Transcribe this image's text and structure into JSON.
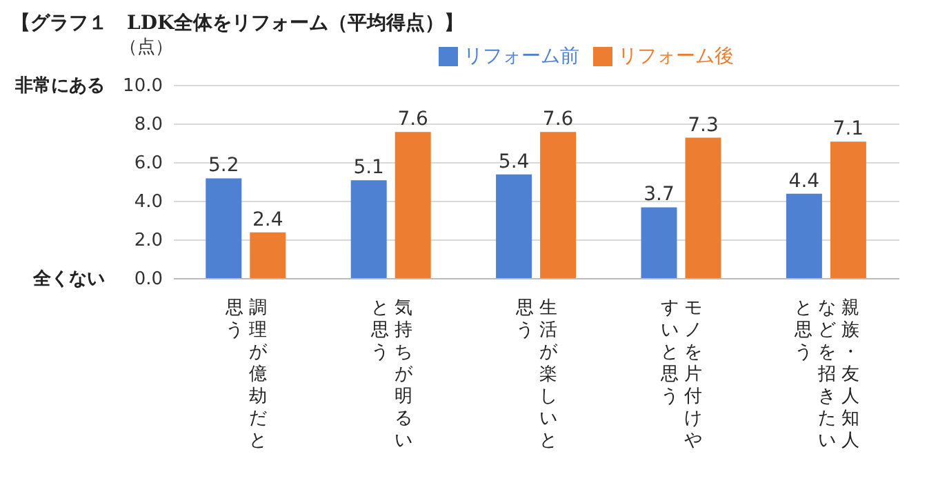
{
  "chart_data": {
    "type": "bar",
    "title": "【グラフ１　LDK全体をリフォーム（平均得点）】",
    "ylabel": "（点）",
    "categories": [
      "調理が億劫だと思う",
      "気持ちが明るいと思う",
      "生活が楽しいと思う",
      "モノを片付けやすいと思う",
      "親族・友人知人などを招きたいと思う"
    ],
    "series": [
      {
        "name": "リフォーム前",
        "color": "#4f81d3",
        "values": [
          5.2,
          5.1,
          5.4,
          3.7,
          4.4
        ]
      },
      {
        "name": "リフォーム後",
        "color": "#ed7d31",
        "values": [
          2.4,
          7.6,
          7.6,
          7.3,
          7.1
        ]
      }
    ],
    "ylim": [
      0,
      10
    ],
    "yticks": [
      {
        "value": 0,
        "label": "0.0"
      },
      {
        "value": 2,
        "label": "2.0"
      },
      {
        "value": 4,
        "label": "4.0"
      },
      {
        "value": 6,
        "label": "6.0"
      },
      {
        "value": 8,
        "label": "8.0"
      },
      {
        "value": 10,
        "label": "10.0"
      }
    ],
    "annotations": [
      "非常にある",
      "全くない"
    ],
    "grid": "y",
    "legend": "top",
    "data_labels": true
  }
}
